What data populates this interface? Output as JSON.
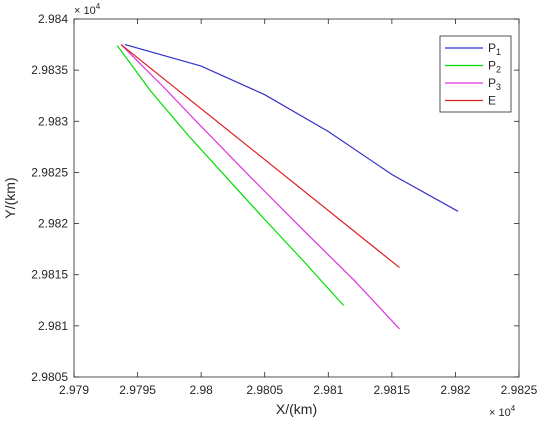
{
  "chart_data": {
    "type": "line",
    "xlabel": "X/(km)",
    "ylabel": "Y/(km)",
    "x_exponent_label": "× 10^4",
    "y_exponent_label": "× 10^4",
    "xlim": [
      29790,
      29825
    ],
    "ylim": [
      29805,
      29840
    ],
    "x_tick_values": [
      29790,
      29795,
      29800,
      29805,
      29810,
      29815,
      29820,
      29825
    ],
    "x_tick_labels": [
      "2.979",
      "2.9795",
      "2.98",
      "2.9805",
      "2.981",
      "2.9815",
      "2.982",
      "2.9825"
    ],
    "y_tick_values": [
      29805,
      29810,
      29815,
      29820,
      29825,
      29830,
      29835,
      29840
    ],
    "y_tick_labels": [
      "2.9805",
      "2.981",
      "2.9815",
      "2.982",
      "2.9825",
      "2.983",
      "2.9835",
      "2.984"
    ],
    "grid": false,
    "legend_position": "top-right",
    "series": [
      {
        "name": "P1",
        "name_main": "P",
        "name_sub": "1",
        "color": "#3333cc",
        "x": [
          29794.0,
          29800,
          29805,
          29810,
          29815,
          29820.2
        ],
        "y": [
          29837.5,
          29835.4,
          29832.6,
          29829.0,
          29824.8,
          29821.2
        ]
      },
      {
        "name": "P2",
        "name_main": "P",
        "name_sub": "2",
        "color": "#00dd00",
        "x": [
          29793.4,
          29796,
          29799,
          29802,
          29805,
          29808,
          29811.2
        ],
        "y": [
          29837.4,
          29833.0,
          29828.6,
          29824.5,
          29820.4,
          29816.4,
          29812.0
        ]
      },
      {
        "name": "P3",
        "name_main": "P",
        "name_sub": "3",
        "color": "#dd33dd",
        "x": [
          29793.7,
          29797,
          29800,
          29804,
          29808,
          29812,
          29815.6
        ],
        "y": [
          29837.5,
          29833.4,
          29829.5,
          29824.4,
          29819.4,
          29814.5,
          29809.7
        ]
      },
      {
        "name": "E",
        "name_main": "E",
        "name_sub": "",
        "color": "#dd2222",
        "x": [
          29793.7,
          29815.6
        ],
        "y": [
          29837.5,
          29815.7
        ]
      }
    ]
  }
}
